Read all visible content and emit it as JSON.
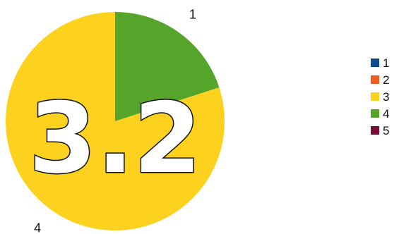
{
  "chart_data": {
    "type": "pie",
    "categories": [
      "1",
      "2",
      "3",
      "4",
      "5"
    ],
    "values": [
      0,
      0,
      4,
      1,
      0
    ],
    "colors": [
      "#0B4C8C",
      "#F25C1F",
      "#FDD21F",
      "#55A52A",
      "#7A0E32"
    ],
    "slice_labels": [
      {
        "category": "4",
        "text": "1"
      },
      {
        "category": "3",
        "text": "4"
      }
    ],
    "center_value": "3.2",
    "legend_position": "right",
    "title": "",
    "start_angle": "top",
    "direction": "clockwise"
  }
}
